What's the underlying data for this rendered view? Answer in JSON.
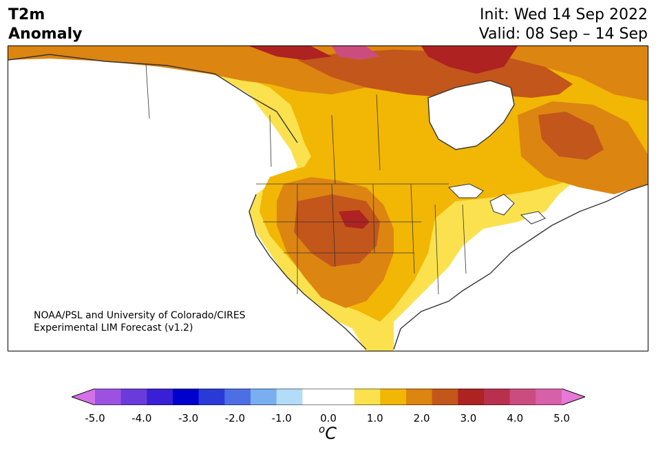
{
  "header": {
    "variable_line1": "T2m",
    "variable_line2": "Anomaly",
    "init": "Init: Wed 14 Sep 2022",
    "valid": "Valid: 08 Sep – 14 Sep"
  },
  "credit": {
    "line1": "NOAA/PSL and University of Colorado/CIRES",
    "line2": "Experimental LIM Forecast (v1.2)"
  },
  "colorbar": {
    "unit_base": "C",
    "unit_sup": "o",
    "colors": [
      "#d471e6",
      "#9b52e0",
      "#6b3adb",
      "#3a1fd6",
      "#0000cc",
      "#2a3ad8",
      "#4d6fe3",
      "#79aef0",
      "#b2dcf8",
      "#ffffff",
      "#ffffff",
      "#fbe14d",
      "#f2b604",
      "#dc8511",
      "#c3561a",
      "#ae2222",
      "#b8304e",
      "#cb4d7d",
      "#d661a9",
      "#e678d8"
    ],
    "ticks": [
      "-5.0",
      "-4.0",
      "-3.0",
      "-2.0",
      "-1.0",
      "0.0",
      "1.0",
      "2.0",
      "3.0",
      "4.0",
      "5.0"
    ]
  }
}
